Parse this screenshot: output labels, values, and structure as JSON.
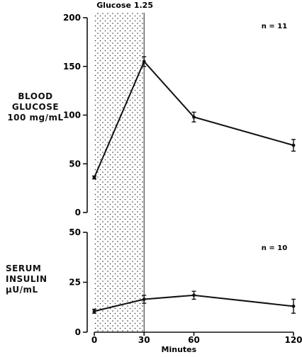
{
  "chart_data": [
    {
      "type": "line",
      "panel": "top",
      "ylabel_lines": [
        "BLOOD",
        "GLUCOSE",
        "100 mg/mL"
      ],
      "annotation": "n = 11",
      "shaded_label": "Glucose 1.25",
      "shaded_range": [
        0,
        30
      ],
      "xlim": [
        0,
        120
      ],
      "ylim": [
        0,
        200
      ],
      "yticks": [
        "0",
        "50",
        "100",
        "150",
        "200"
      ],
      "series": [
        {
          "x": [
            0,
            30,
            60,
            120
          ],
          "y": [
            36,
            155,
            98,
            69
          ],
          "error": [
            1.5,
            5,
            5,
            6
          ]
        }
      ]
    },
    {
      "type": "line",
      "panel": "bottom",
      "ylabel_lines": [
        "SERUM",
        "INSULIN",
        "µU/mL"
      ],
      "annotation": "n = 10",
      "shaded_range": [
        0,
        30
      ],
      "xlim": [
        0,
        120
      ],
      "ylim": [
        0,
        50
      ],
      "yticks": [
        "0",
        "25",
        "50"
      ],
      "xticks": [
        "0",
        "30",
        "60",
        "120"
      ],
      "xlabel": "Minutes",
      "series": [
        {
          "x": [
            0,
            30,
            60,
            120
          ],
          "y": [
            10.5,
            16.5,
            18.5,
            13
          ],
          "error": [
            1,
            2,
            2,
            3.5
          ]
        }
      ]
    }
  ]
}
